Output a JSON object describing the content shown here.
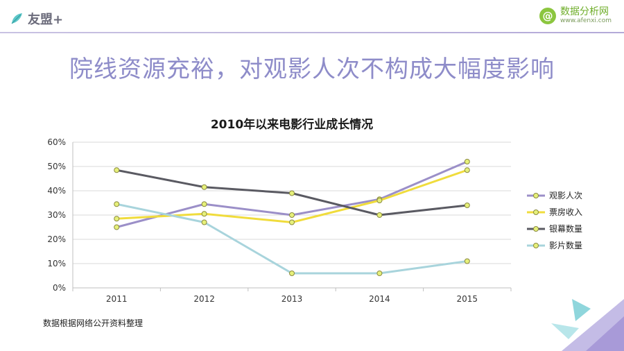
{
  "header": {
    "brand_name": "友盟+",
    "site_name": "数据分析网",
    "site_url": "www.afenxi.com",
    "site_badge": "@"
  },
  "headline": "院线资源充裕，对观影人次不构成大幅度影响",
  "footnote": "数据根据网络公开资料整理",
  "colors": {
    "accent": "#8e8cc9",
    "grid": "#d9d9d9"
  },
  "chart_data": {
    "type": "line",
    "title": "2010年以来电影行业成长情况",
    "categories": [
      "2011",
      "2012",
      "2013",
      "2014",
      "2015"
    ],
    "ylim": [
      0,
      60
    ],
    "yticks": [
      "0%",
      "10%",
      "20%",
      "30%",
      "40%",
      "50%",
      "60%"
    ],
    "grid": true,
    "legend_position": "right",
    "series": [
      {
        "name": "观影人次",
        "color": "#9b8fc8",
        "values": [
          25,
          34.5,
          30,
          36.5,
          52
        ]
      },
      {
        "name": "票房收入",
        "color": "#f0dc3c",
        "values": [
          28.5,
          30.5,
          27,
          36,
          48.5
        ]
      },
      {
        "name": "银幕数量",
        "color": "#5a5a62",
        "values": [
          48.5,
          41.5,
          39,
          30,
          34
        ]
      },
      {
        "name": "影片数量",
        "color": "#a8d4dc",
        "values": [
          34.5,
          27,
          6,
          6,
          11
        ]
      }
    ]
  }
}
